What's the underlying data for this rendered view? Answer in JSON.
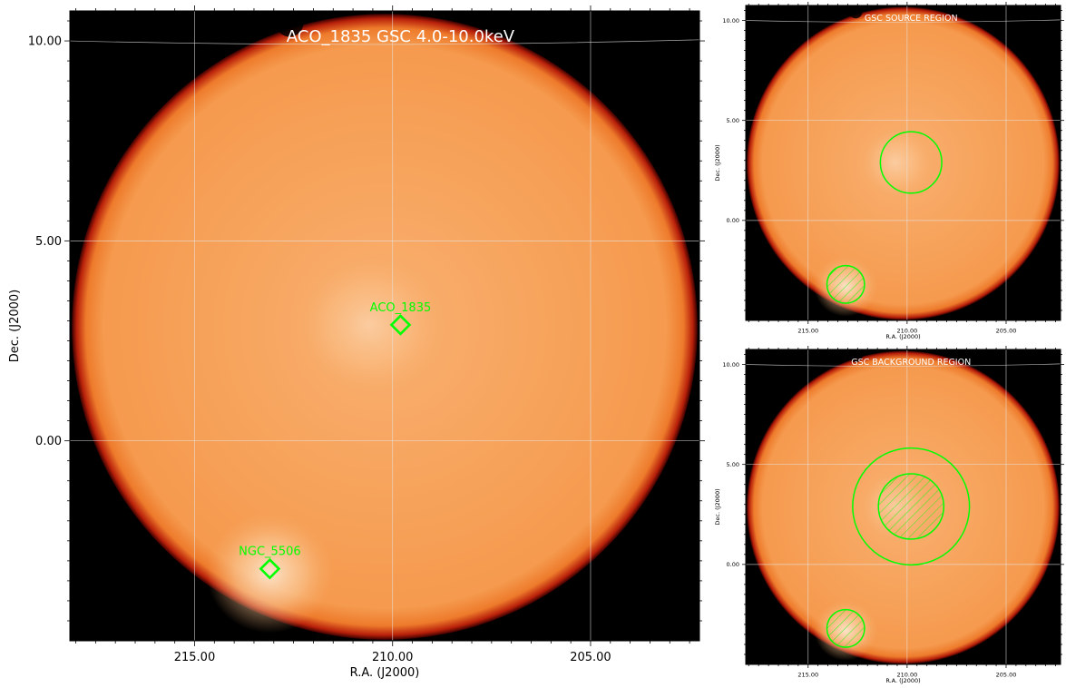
{
  "colors": {
    "background": "#000000",
    "disk": "#f59a4e",
    "disk_edge": "#b8200a",
    "source_glow": "#fde6cf",
    "grid": "#e6e6e6",
    "marker": "#00ff00",
    "title": "#ffffff"
  },
  "main": {
    "title": "ACO_1835 GSC 4.0-10.0keV"
  },
  "source_panel": {
    "title": "GSC SOURCE REGION"
  },
  "background_panel": {
    "title": "GSC BACKGROUND REGION"
  },
  "chart_data": [
    {
      "type": "heatmap",
      "panel": "main",
      "title": "ACO_1835 GSC 4.0-10.0keV",
      "xlabel": "R.A. (J2000)",
      "ylabel": "Dec. (J2000)",
      "xlim": [
        218.15,
        202.25
      ],
      "ylim": [
        -5.0,
        10.75
      ],
      "x_axis_reversed": true,
      "xticks": [
        215.0,
        210.0,
        205.0
      ],
      "xtick_labels": [
        "215.00",
        "210.00",
        "205.00"
      ],
      "yticks": [
        0.0,
        5.0,
        10.0
      ],
      "ytick_labels": [
        "0.00",
        "5.00",
        "10.00"
      ],
      "grid": true,
      "colormap": "orange-hot",
      "field_of_view": {
        "shape": "circle",
        "center": [
          210.2,
          2.85
        ],
        "radius_deg": 7.9
      },
      "bright_spots": [
        {
          "ra": 213.1,
          "dec": -3.3,
          "strength": "high"
        },
        {
          "ra": 210.6,
          "dec": 2.9,
          "strength": "low"
        }
      ],
      "markers": [
        {
          "label": "ACO_1835",
          "ra": 209.8,
          "dec": 2.9,
          "shape": "diamond",
          "color": "#00ff00"
        },
        {
          "label": "NGC_5506",
          "ra": 213.1,
          "dec": -3.2,
          "shape": "diamond",
          "color": "#00ff00"
        }
      ]
    },
    {
      "type": "heatmap",
      "panel": "source",
      "title": "GSC SOURCE REGION",
      "xlabel": "R.A. (J2000)",
      "ylabel": "Dec. (J2000)",
      "xlim": [
        218.15,
        202.25
      ],
      "ylim": [
        -5.0,
        10.75
      ],
      "xtick_labels": [
        "215.00",
        "210.00",
        "205.00"
      ],
      "ytick_labels": [
        "0.00",
        "5.00",
        "10.00"
      ],
      "grid": true,
      "regions": [
        {
          "kind": "source",
          "shape": "circle",
          "ra": 209.8,
          "dec": 2.9,
          "radius_deg": 1.55,
          "hatched": false
        },
        {
          "kind": "excluded",
          "shape": "circle",
          "ra": 213.1,
          "dec": -3.2,
          "radius_deg": 0.95,
          "hatched": true
        }
      ]
    },
    {
      "type": "heatmap",
      "panel": "background",
      "title": "GSC BACKGROUND REGION",
      "xlabel": "R.A. (J2000)",
      "ylabel": "Dec. (J2000)",
      "xlim": [
        218.15,
        202.25
      ],
      "ylim": [
        -5.0,
        10.75
      ],
      "xtick_labels": [
        "215.00",
        "210.00",
        "205.00"
      ],
      "ytick_labels": [
        "0.00",
        "5.00",
        "10.00"
      ],
      "grid": true,
      "regions": [
        {
          "kind": "background-annulus-outer",
          "shape": "circle",
          "ra": 209.8,
          "dec": 2.9,
          "radius_deg": 2.95,
          "hatched": false
        },
        {
          "kind": "excluded",
          "shape": "circle",
          "ra": 209.8,
          "dec": 2.9,
          "radius_deg": 1.65,
          "hatched": true
        },
        {
          "kind": "excluded",
          "shape": "circle",
          "ra": 213.1,
          "dec": -3.2,
          "radius_deg": 0.95,
          "hatched": true
        }
      ]
    }
  ]
}
